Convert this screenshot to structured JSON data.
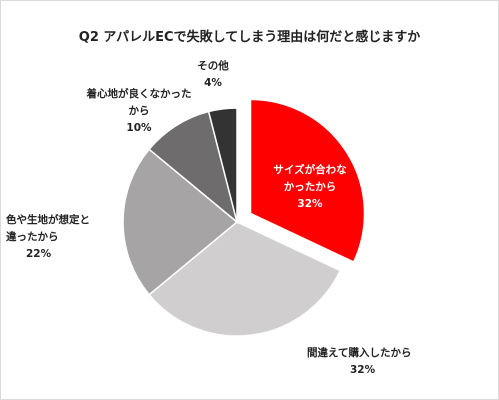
{
  "chart_data": {
    "type": "pie",
    "title": "Q2 アパレルECで失敗してしまう理由は何だと感じますか",
    "start_angle_deg": 0,
    "direction": "clockwise",
    "slices": [
      {
        "label": "サイズが合わなかったから",
        "label_lines": [
          "サイズが合わな",
          "かったから"
        ],
        "value": 32,
        "value_label": "32%",
        "color": "#ff0000",
        "exploded": true
      },
      {
        "label": "間違えて購入したから",
        "label_lines": [
          "間違えて購入したから"
        ],
        "value": 32,
        "value_label": "32%",
        "color": "#d0cece",
        "exploded": false
      },
      {
        "label": "色や生地が想定と違ったから",
        "label_lines": [
          "色や生地が想定と",
          "違ったから"
        ],
        "value": 22,
        "value_label": "22%",
        "color": "#a6a4a4",
        "exploded": false
      },
      {
        "label": "着心地が良くなかったから",
        "label_lines": [
          "着心地が良くなかったから"
        ],
        "value": 10,
        "value_label": "10%",
        "color": "#6e6c6c",
        "exploded": false
      },
      {
        "label": "その他",
        "label_lines": [
          "その他"
        ],
        "value": 4,
        "value_label": "4%",
        "color": "#333333",
        "exploded": false
      }
    ],
    "legend": "none"
  }
}
